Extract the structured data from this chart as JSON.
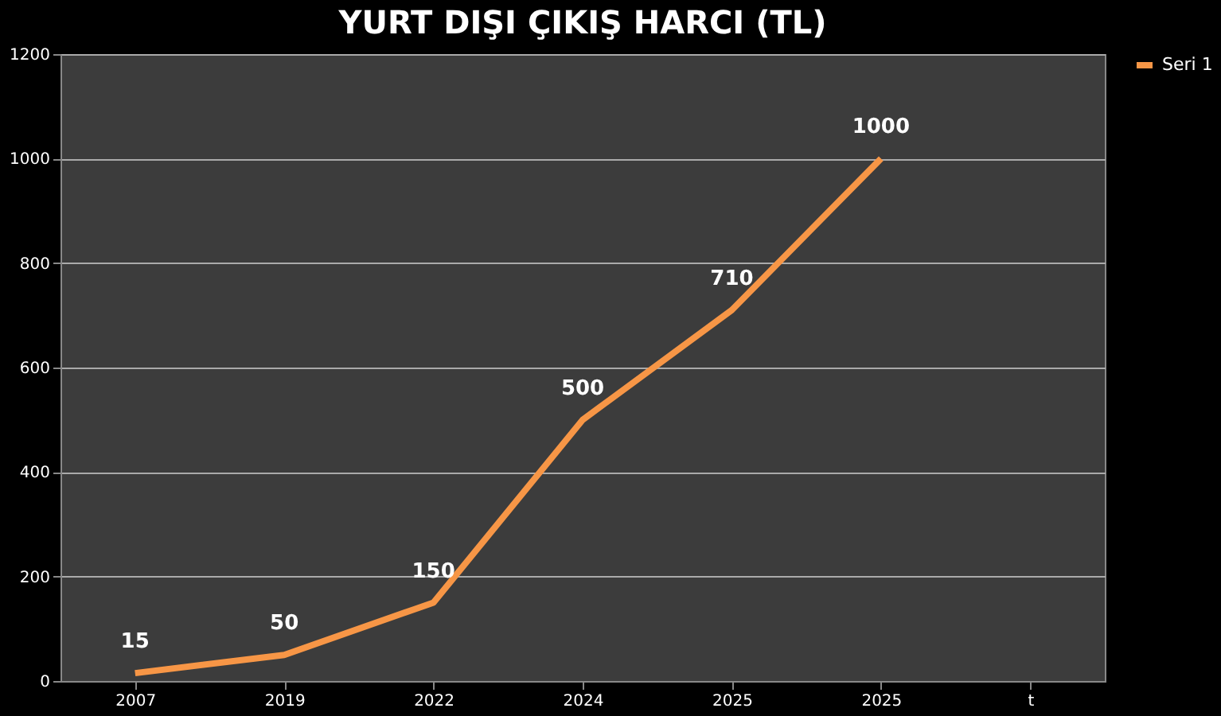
{
  "chart_data": {
    "type": "line",
    "title": "YURT DIŞI ÇIKIŞ HARCI (TL)",
    "categories": [
      "2007",
      "2019",
      "2022",
      "2024",
      "2025",
      "2025",
      "t"
    ],
    "series": [
      {
        "name": "Seri 1",
        "color": "#f79646",
        "values": [
          15,
          50,
          150,
          500,
          710,
          1000,
          null
        ]
      }
    ],
    "ylim": [
      0,
      1200
    ],
    "yticks": [
      0,
      200,
      400,
      600,
      800,
      1000,
      1200
    ],
    "grid": "y",
    "legend": "right",
    "data_labels": true,
    "marker": "none",
    "line_style": "solid"
  }
}
